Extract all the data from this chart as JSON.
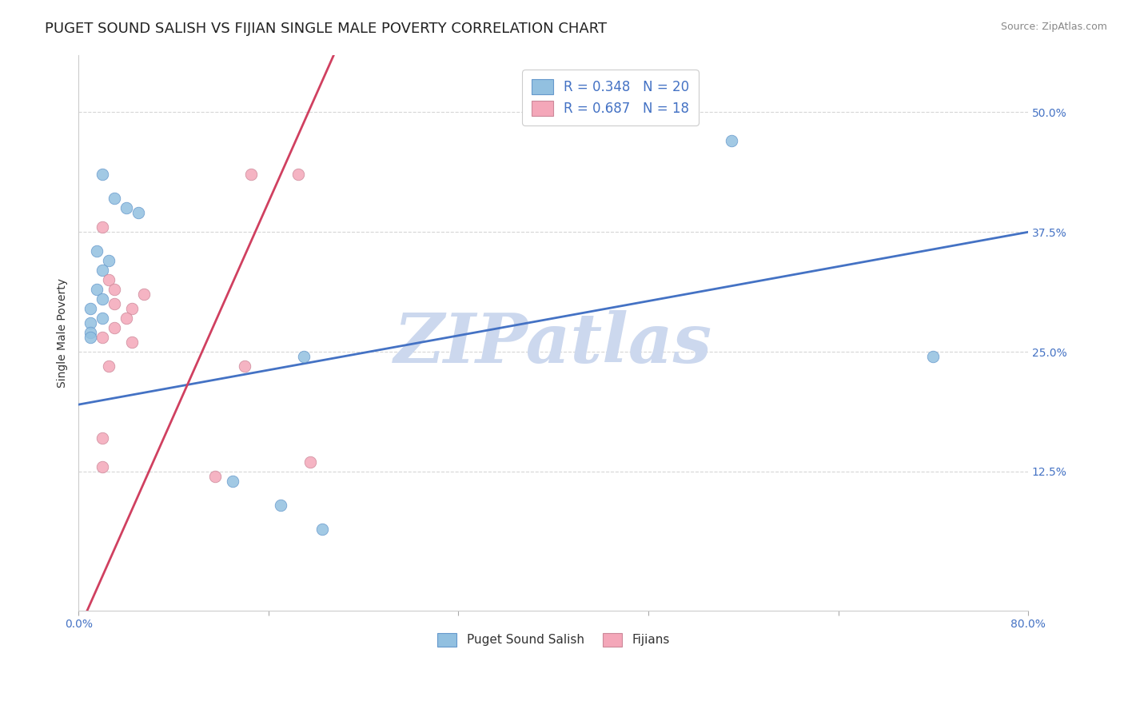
{
  "title": "PUGET SOUND SALISH VS FIJIAN SINGLE MALE POVERTY CORRELATION CHART",
  "source": "Source: ZipAtlas.com",
  "ylabel_label": "Single Male Poverty",
  "xlim": [
    0.0,
    0.8
  ],
  "ylim": [
    -0.02,
    0.56
  ],
  "xticks": [
    0.0,
    0.16,
    0.32,
    0.48,
    0.64,
    0.8
  ],
  "xtick_labels": [
    "0.0%",
    "",
    "",
    "",
    "",
    "80.0%"
  ],
  "ytick_values": [
    0.125,
    0.25,
    0.375,
    0.5
  ],
  "ytick_labels": [
    "12.5%",
    "25.0%",
    "37.5%",
    "50.0%"
  ],
  "grid_color": "#cccccc",
  "background_color": "#ffffff",
  "blue_color": "#92c0e0",
  "pink_color": "#f4a7b9",
  "blue_edge_color": "#6699cc",
  "pink_edge_color": "#cc8899",
  "blue_line_color": "#4472c4",
  "pink_line_color": "#d04060",
  "blue_scatter": [
    [
      0.02,
      0.435
    ],
    [
      0.03,
      0.41
    ],
    [
      0.04,
      0.4
    ],
    [
      0.05,
      0.395
    ],
    [
      0.015,
      0.355
    ],
    [
      0.025,
      0.345
    ],
    [
      0.02,
      0.335
    ],
    [
      0.015,
      0.315
    ],
    [
      0.02,
      0.305
    ],
    [
      0.01,
      0.295
    ],
    [
      0.02,
      0.285
    ],
    [
      0.01,
      0.28
    ],
    [
      0.01,
      0.27
    ],
    [
      0.01,
      0.265
    ],
    [
      0.19,
      0.245
    ],
    [
      0.55,
      0.47
    ],
    [
      0.72,
      0.245
    ],
    [
      0.13,
      0.115
    ],
    [
      0.17,
      0.09
    ],
    [
      0.205,
      0.065
    ]
  ],
  "pink_scatter": [
    [
      0.145,
      0.435
    ],
    [
      0.185,
      0.435
    ],
    [
      0.02,
      0.38
    ],
    [
      0.025,
      0.325
    ],
    [
      0.03,
      0.315
    ],
    [
      0.055,
      0.31
    ],
    [
      0.03,
      0.3
    ],
    [
      0.045,
      0.295
    ],
    [
      0.04,
      0.285
    ],
    [
      0.03,
      0.275
    ],
    [
      0.02,
      0.265
    ],
    [
      0.045,
      0.26
    ],
    [
      0.14,
      0.235
    ],
    [
      0.025,
      0.235
    ],
    [
      0.02,
      0.16
    ],
    [
      0.02,
      0.13
    ],
    [
      0.115,
      0.12
    ],
    [
      0.195,
      0.135
    ]
  ],
  "blue_line": [
    [
      0.0,
      0.195
    ],
    [
      0.8,
      0.375
    ]
  ],
  "pink_line_solid": [
    [
      0.0,
      -0.04
    ],
    [
      0.215,
      0.56
    ]
  ],
  "pink_line_dash": [
    [
      0.215,
      0.56
    ],
    [
      0.3,
      0.75
    ]
  ],
  "legend_entries": [
    {
      "label": "R = 0.348   N = 20",
      "color": "#92c0e0"
    },
    {
      "label": "R = 0.687   N = 18",
      "color": "#f4a7b9"
    }
  ],
  "watermark": "ZIPatlas",
  "watermark_color": "#ccd8ee",
  "title_color": "#222222",
  "axis_label_color": "#333333",
  "tick_label_color": "#4472c4",
  "title_fontsize": 13,
  "axis_fontsize": 10,
  "tick_fontsize": 10,
  "legend_text_color": "#4472c4"
}
